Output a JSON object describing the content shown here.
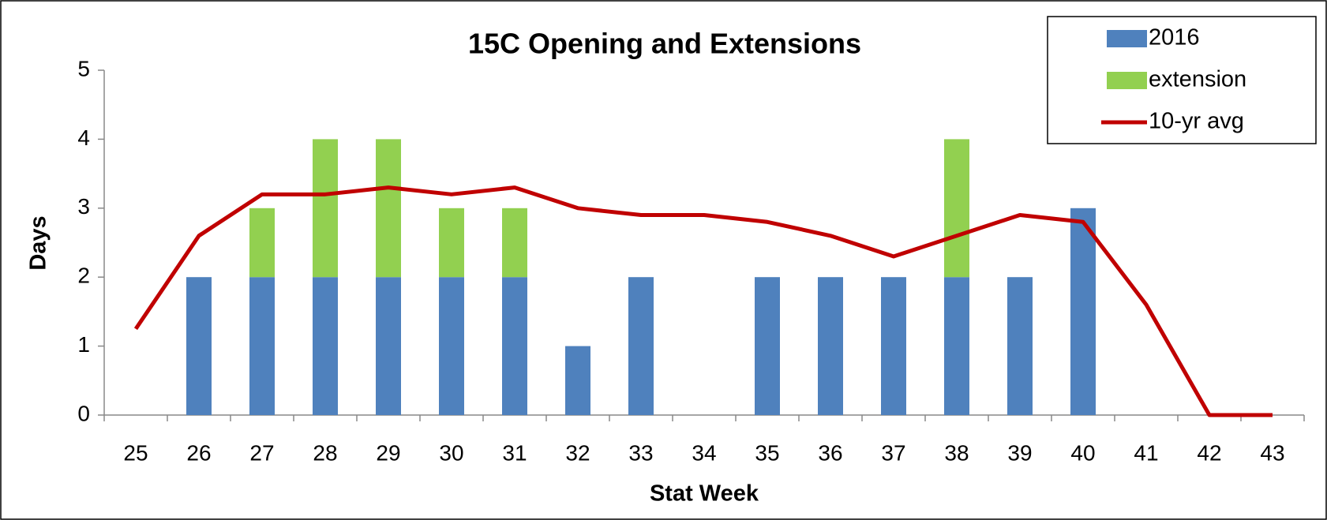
{
  "chart_data": {
    "type": "bar",
    "title": "15C Opening and Extensions",
    "x_label": "Stat Week",
    "y_label": "Days",
    "categories": [
      "25",
      "26",
      "27",
      "28",
      "29",
      "30",
      "31",
      "32",
      "33",
      "34",
      "35",
      "36",
      "37",
      "38",
      "39",
      "40",
      "41",
      "42",
      "43"
    ],
    "series": [
      {
        "name": "2016",
        "type": "bar",
        "color": "#4f81bd",
        "values": [
          0,
          2,
          2,
          2,
          2,
          2,
          2,
          1,
          2,
          0,
          2,
          2,
          2,
          2,
          2,
          3,
          0,
          0,
          0
        ]
      },
      {
        "name": "extension",
        "type": "bar",
        "color": "#92d050",
        "values": [
          0,
          0,
          1,
          2,
          2,
          1,
          1,
          0,
          0,
          0,
          0,
          0,
          0,
          2,
          0,
          0,
          0,
          0,
          0
        ]
      },
      {
        "name": "10-yr avg",
        "type": "line",
        "color": "#c00000",
        "values": [
          1.25,
          2.6,
          3.2,
          3.2,
          3.3,
          3.2,
          3.3,
          3.0,
          2.9,
          2.9,
          2.8,
          2.6,
          2.3,
          2.6,
          2.9,
          2.8,
          1.6,
          0,
          0
        ]
      }
    ],
    "stacked": true,
    "ylim": [
      0,
      5
    ],
    "yticks": [
      0,
      1,
      2,
      3,
      4,
      5
    ],
    "grid": false,
    "legend": "top-right"
  }
}
